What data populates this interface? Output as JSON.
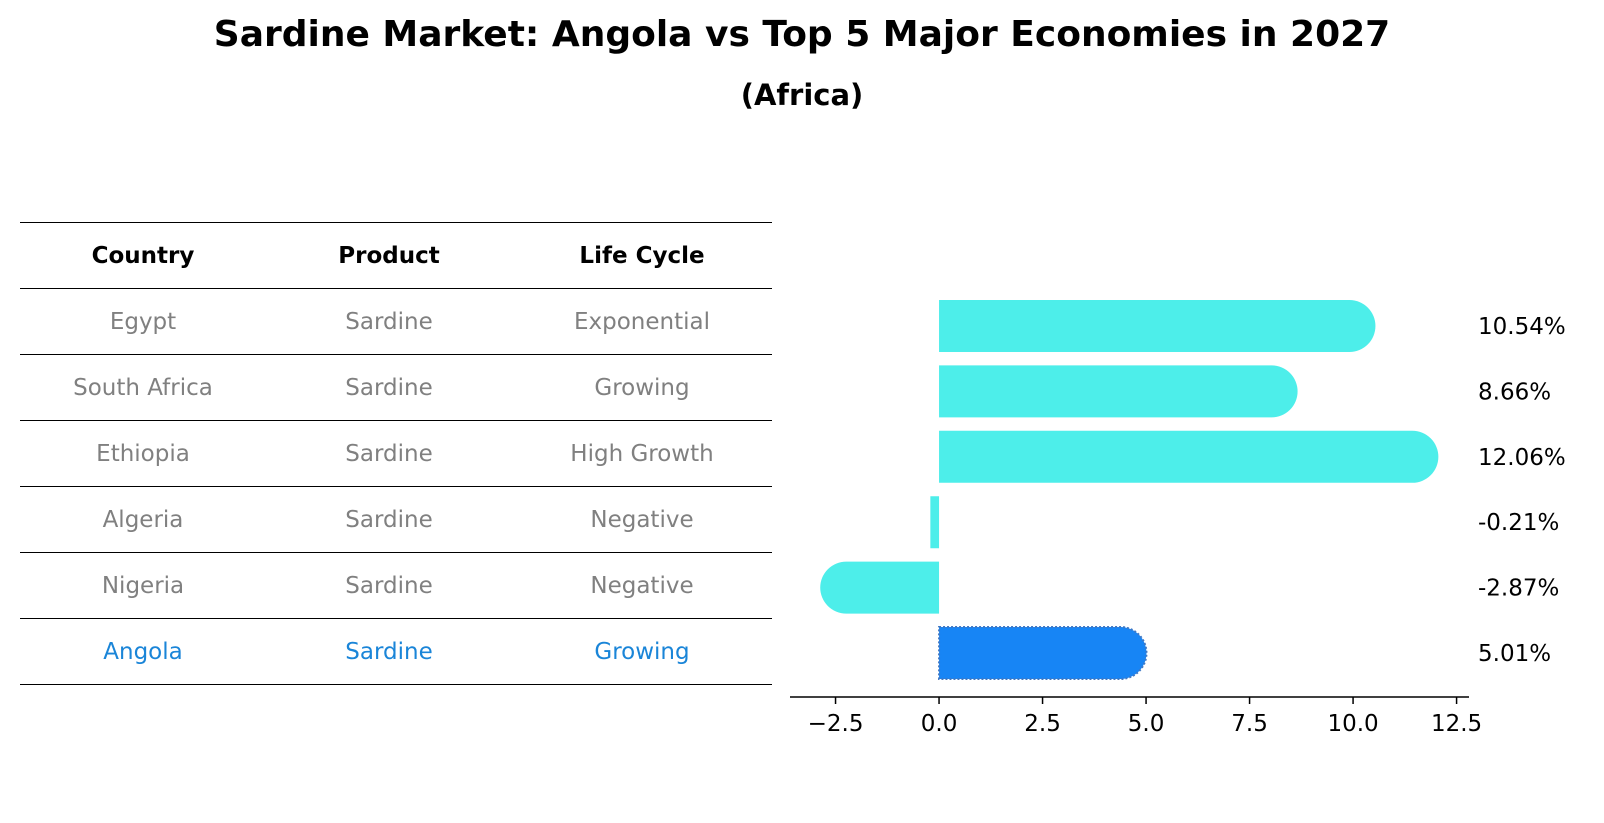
{
  "title": "Sardine Market: Angola vs Top 5 Major Economies in 2027",
  "subtitle": "(Africa)",
  "table": {
    "headers": [
      "Country",
      "Product",
      "Life Cycle"
    ],
    "rows": [
      {
        "country": "Egypt",
        "product": "Sardine",
        "life_cycle": "Exponential",
        "highlight": false
      },
      {
        "country": "South Africa",
        "product": "Sardine",
        "life_cycle": "Growing",
        "highlight": false
      },
      {
        "country": "Ethiopia",
        "product": "Sardine",
        "life_cycle": "High Growth",
        "highlight": false
      },
      {
        "country": "Algeria",
        "product": "Sardine",
        "life_cycle": "Negative",
        "highlight": false
      },
      {
        "country": "Nigeria",
        "product": "Sardine",
        "life_cycle": "Negative",
        "highlight": false
      },
      {
        "country": "Angola",
        "product": "Sardine",
        "life_cycle": "Growing",
        "highlight": true
      }
    ]
  },
  "colors": {
    "bar": "#4deeea",
    "highlight_bar": "#1785f5",
    "muted_text": "#808080",
    "highlight_text": "#1a85d8"
  },
  "chart_data": {
    "type": "bar",
    "orientation": "horizontal",
    "categories": [
      "Egypt",
      "South Africa",
      "Ethiopia",
      "Algeria",
      "Nigeria",
      "Angola"
    ],
    "values": [
      10.54,
      8.66,
      12.06,
      -0.21,
      -2.87,
      5.01
    ],
    "value_labels": [
      "10.54%",
      "8.66%",
      "12.06%",
      "-0.21%",
      "-2.87%",
      "5.01%"
    ],
    "highlight_category": "Angola",
    "xlim": [
      -3.6,
      12.8
    ],
    "xticks": [
      -2.5,
      0.0,
      2.5,
      5.0,
      7.5,
      10.0,
      12.5
    ],
    "xtick_labels": [
      "−2.5",
      "0.0",
      "2.5",
      "5.0",
      "7.5",
      "10.0",
      "12.5"
    ],
    "xlabel": "",
    "ylabel": "",
    "grid": false
  }
}
